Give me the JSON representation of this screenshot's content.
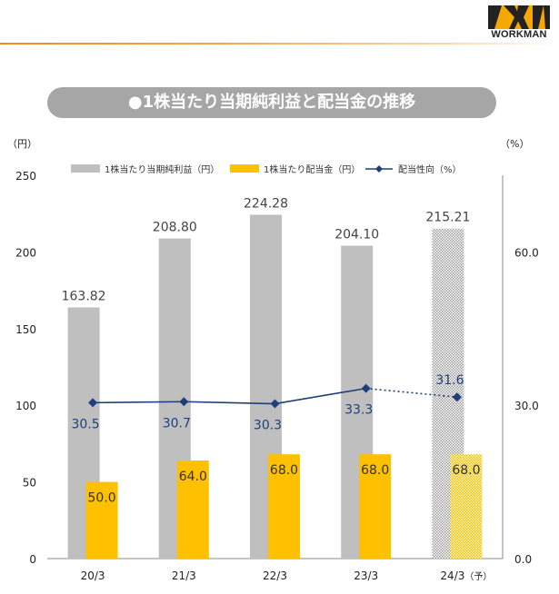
{
  "brand": {
    "logo_text": "WORKMAN",
    "accent_color": "#f08a1c"
  },
  "title": "●1株当たり当期純利益と配当金の推移",
  "chart_data": {
    "type": "bar",
    "categories": [
      "20/3",
      "21/3",
      "22/3",
      "23/3",
      "24/3"
    ],
    "category_suffix": [
      "",
      "",
      "",
      "",
      "（予）"
    ],
    "left_axis": {
      "unit": "（円）",
      "min": 0,
      "max": 250,
      "ticks": [
        0,
        50,
        100,
        150,
        200,
        250
      ]
    },
    "right_axis": {
      "unit": "（%）",
      "min": 0,
      "max": 75,
      "ticks": [
        0.0,
        30.0,
        60.0
      ],
      "tick_labels": [
        "0.0",
        "30.0",
        "60.0"
      ]
    },
    "series": [
      {
        "name": "1株当たり当期純利益（円）",
        "kind": "bar",
        "axis": "left",
        "color": "#bfbfbf",
        "values": [
          163.82,
          208.8,
          224.28,
          204.1,
          215.21
        ],
        "labels": [
          "163.82",
          "208.80",
          "224.28",
          "204.10",
          "215.21"
        ],
        "forecast_from_index": 4
      },
      {
        "name": "1株当たり配当金（円）",
        "kind": "bar",
        "axis": "left",
        "color": "#ffc000",
        "values": [
          50.0,
          64.0,
          68.0,
          68.0,
          68.0
        ],
        "labels": [
          "50.0",
          "64.0",
          "68.0",
          "68.0",
          "68.0"
        ],
        "forecast_from_index": 4
      },
      {
        "name": "配当性向（%）",
        "kind": "line",
        "axis": "right",
        "color": "#1f3f7a",
        "values": [
          30.5,
          30.7,
          30.3,
          33.3,
          31.6
        ],
        "labels": [
          "30.5",
          "30.7",
          "30.3",
          "33.3",
          "31.6"
        ],
        "forecast_from_index": 4
      }
    ],
    "legend": "top",
    "grid": false
  }
}
